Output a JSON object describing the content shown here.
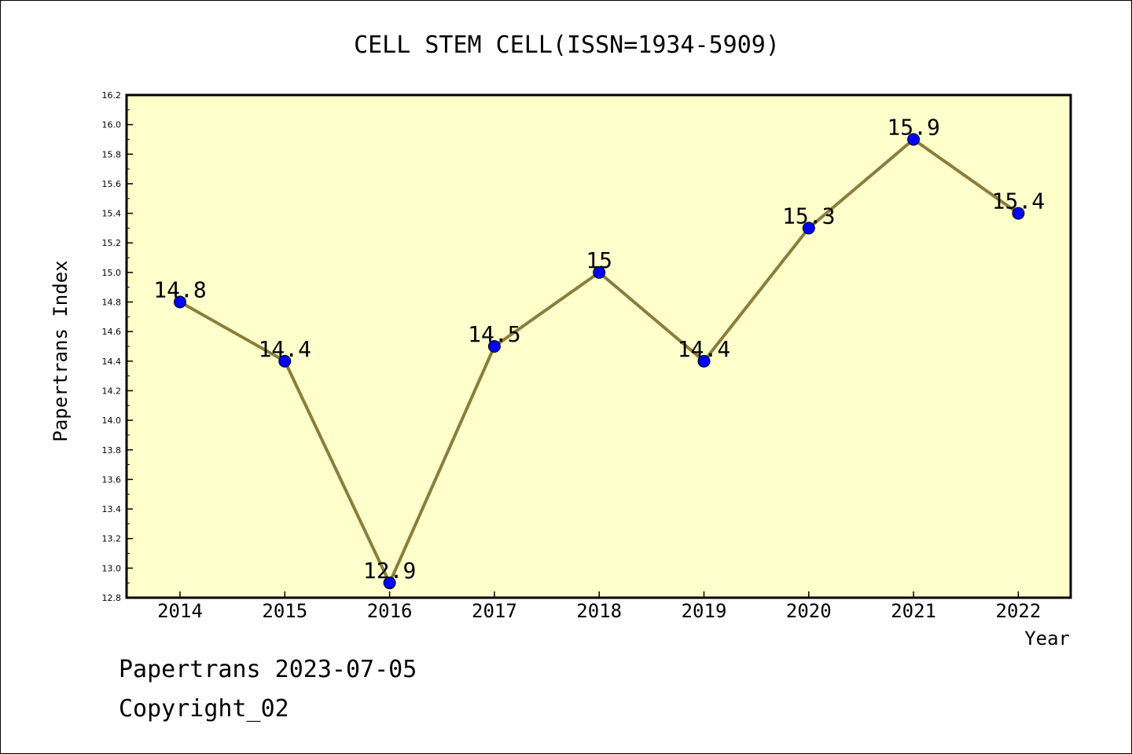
{
  "chart_data": {
    "type": "line",
    "title": "CELL STEM CELL(ISSN=1934-5909)",
    "xlabel": "Year",
    "ylabel": "Papertrans Index",
    "categories": [
      "2014",
      "2015",
      "2016",
      "2017",
      "2018",
      "2019",
      "2020",
      "2021",
      "2022"
    ],
    "series": [
      {
        "values": [
          14.8,
          14.4,
          12.9,
          14.5,
          15.0,
          14.4,
          15.3,
          15.9,
          15.4
        ],
        "labels": [
          "14.8",
          "14.4",
          "12.9",
          "14.5",
          "15",
          "14.4",
          "15.3",
          "15.9",
          "15.4"
        ]
      }
    ],
    "ylim": [
      12.8,
      16.2
    ],
    "ytick_step": 0.2,
    "ytick_labels": [
      "12.8",
      "13.0",
      "13.2",
      "13.4",
      "13.6",
      "13.8",
      "14.0",
      "14.2",
      "14.4",
      "14.6",
      "14.8",
      "15.0",
      "15.2",
      "15.4",
      "15.6",
      "15.8",
      "16.0",
      "16.2"
    ],
    "grid": false,
    "colors": {
      "plot_background": "#ffffcc",
      "line": "#8b7d3a",
      "marker": "#0000ff"
    }
  },
  "footer": {
    "date_text": "Papertrans 2023-07-05",
    "copyright_text": "Copyright_02"
  }
}
